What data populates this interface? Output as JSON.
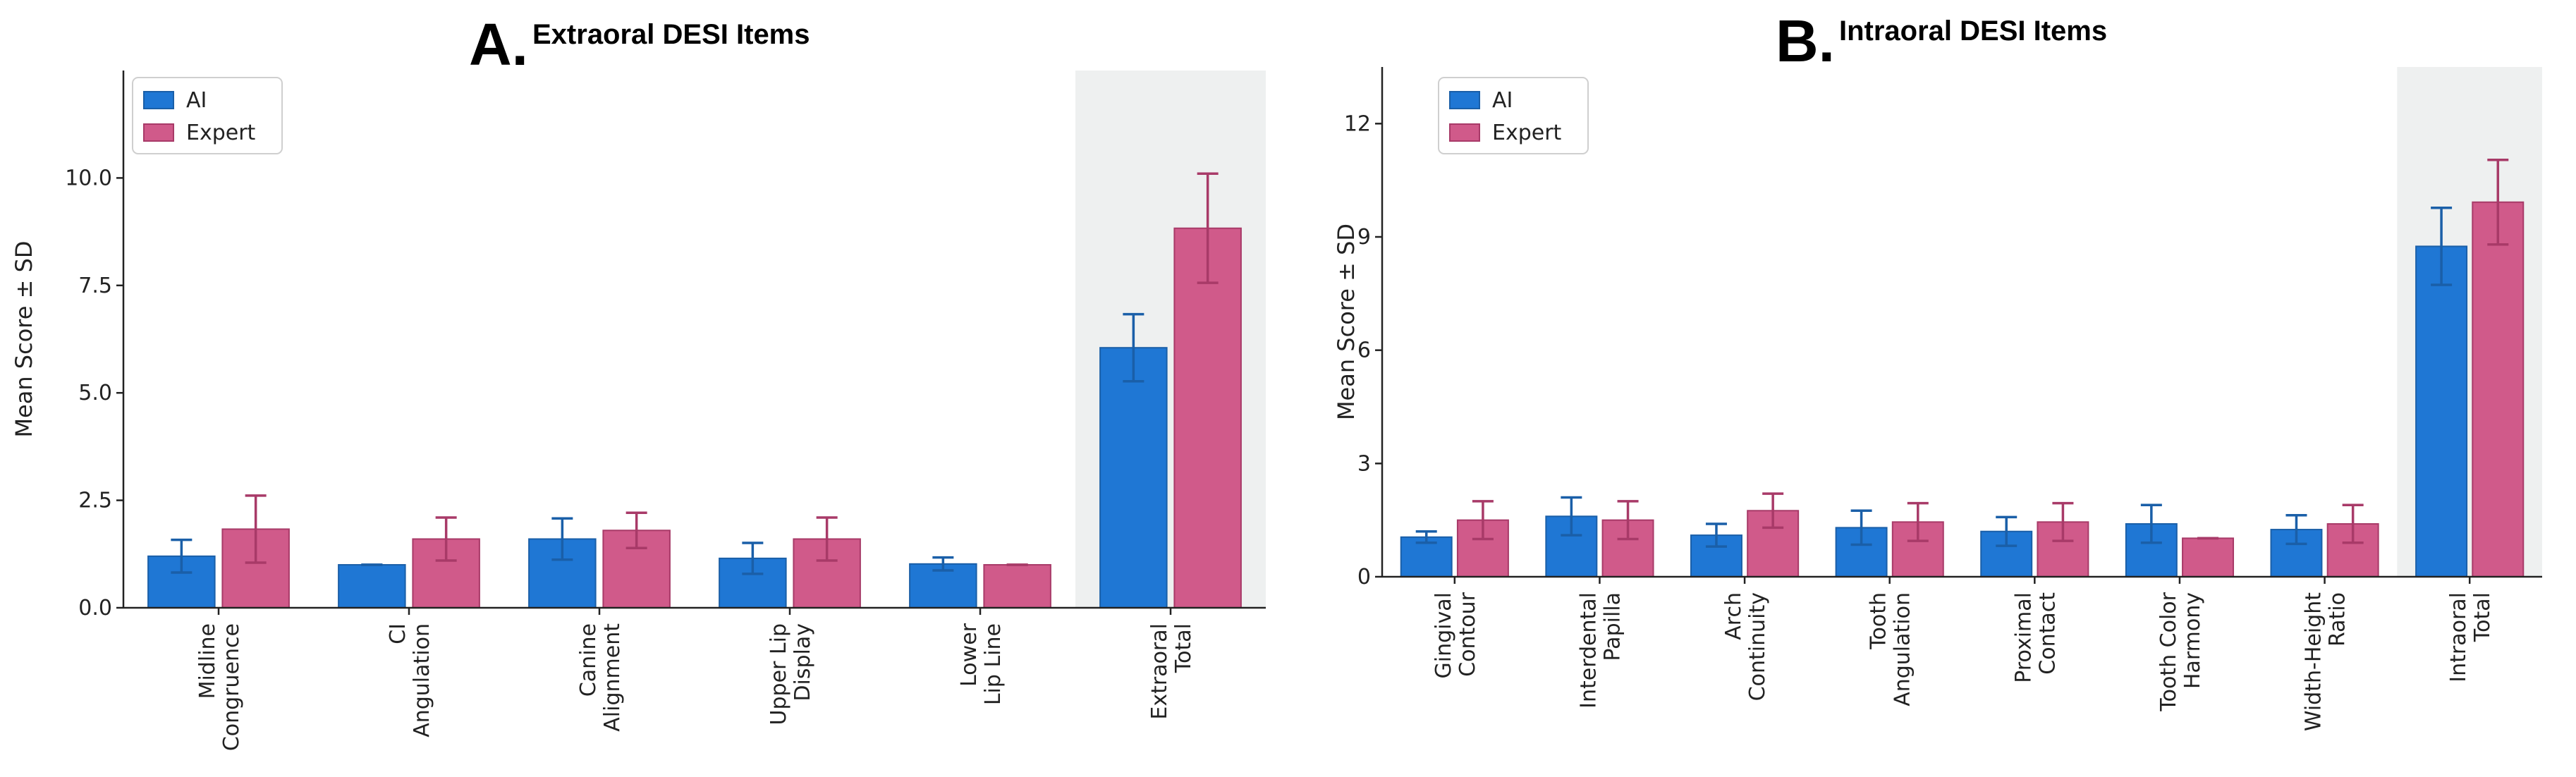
{
  "colors": {
    "ai_fill": "#1f77d4",
    "ai_edge": "#1a5fa8",
    "expert_fill": "#d05a8a",
    "expert_edge": "#a83a68",
    "highlight_bg": "#eef0f0",
    "axis": "#222222"
  },
  "chart_data": [
    {
      "type": "bar",
      "panel_letter": "A.",
      "title": "Extraoral DESI Items",
      "xlabel": "",
      "ylabel": "Mean Score ± SD",
      "ylim": [
        0,
        12.5
      ],
      "yticks": [
        0,
        2.5,
        5,
        7.5,
        10
      ],
      "ytick_labels": [
        "0.0",
        "2.5",
        "5.0",
        "7.5",
        "10.0"
      ],
      "categories": [
        [
          "Midline",
          "Congruence"
        ],
        [
          "CI",
          "Angulation"
        ],
        [
          "Canine",
          "Alignment"
        ],
        [
          "Upper Lip",
          "Display"
        ],
        [
          "Lower",
          "Lip Line"
        ],
        [
          "Extraoral",
          "Total"
        ]
      ],
      "highlight_index": 5,
      "legend": {
        "position": "top-left",
        "entries": [
          "AI",
          "Expert"
        ]
      },
      "series": [
        {
          "name": "AI",
          "values": [
            1.2,
            1.0,
            1.6,
            1.15,
            1.02,
            6.05
          ],
          "errors": [
            0.38,
            0.0,
            0.48,
            0.36,
            0.15,
            0.78
          ]
        },
        {
          "name": "Expert",
          "values": [
            1.83,
            1.6,
            1.8,
            1.6,
            1.0,
            8.83
          ],
          "errors": [
            0.78,
            0.5,
            0.41,
            0.5,
            0.0,
            1.27
          ]
        }
      ]
    },
    {
      "type": "bar",
      "panel_letter": "B.",
      "title": "Intraoral DESI Items",
      "xlabel": "",
      "ylabel": "Mean Score ± SD",
      "ylim": [
        0,
        13.5
      ],
      "yticks": [
        0,
        3,
        6,
        9,
        12
      ],
      "ytick_labels": [
        "0",
        "3",
        "6",
        "9",
        "12"
      ],
      "categories": [
        [
          "Gingival",
          "Contour"
        ],
        [
          "Interdental",
          "Papilla"
        ],
        [
          "Arch",
          "Continuity"
        ],
        [
          "Tooth",
          "Angulation"
        ],
        [
          "Proximal",
          "Contact"
        ],
        [
          "Tooth Color",
          "Harmony"
        ],
        [
          "Width-Height",
          "Ratio"
        ],
        [
          "Intraoral",
          "Total"
        ]
      ],
      "highlight_index": 7,
      "legend": {
        "position": "top-left",
        "entries": [
          "AI",
          "Expert"
        ]
      },
      "series": [
        {
          "name": "AI",
          "values": [
            1.05,
            1.6,
            1.1,
            1.3,
            1.2,
            1.4,
            1.25,
            8.75
          ],
          "errors": [
            0.15,
            0.5,
            0.3,
            0.45,
            0.38,
            0.5,
            0.38,
            1.02
          ]
        },
        {
          "name": "Expert",
          "values": [
            1.5,
            1.5,
            1.75,
            1.45,
            1.45,
            1.02,
            1.4,
            9.92
          ],
          "errors": [
            0.5,
            0.5,
            0.45,
            0.5,
            0.5,
            0.0,
            0.5,
            1.12
          ]
        }
      ]
    }
  ]
}
